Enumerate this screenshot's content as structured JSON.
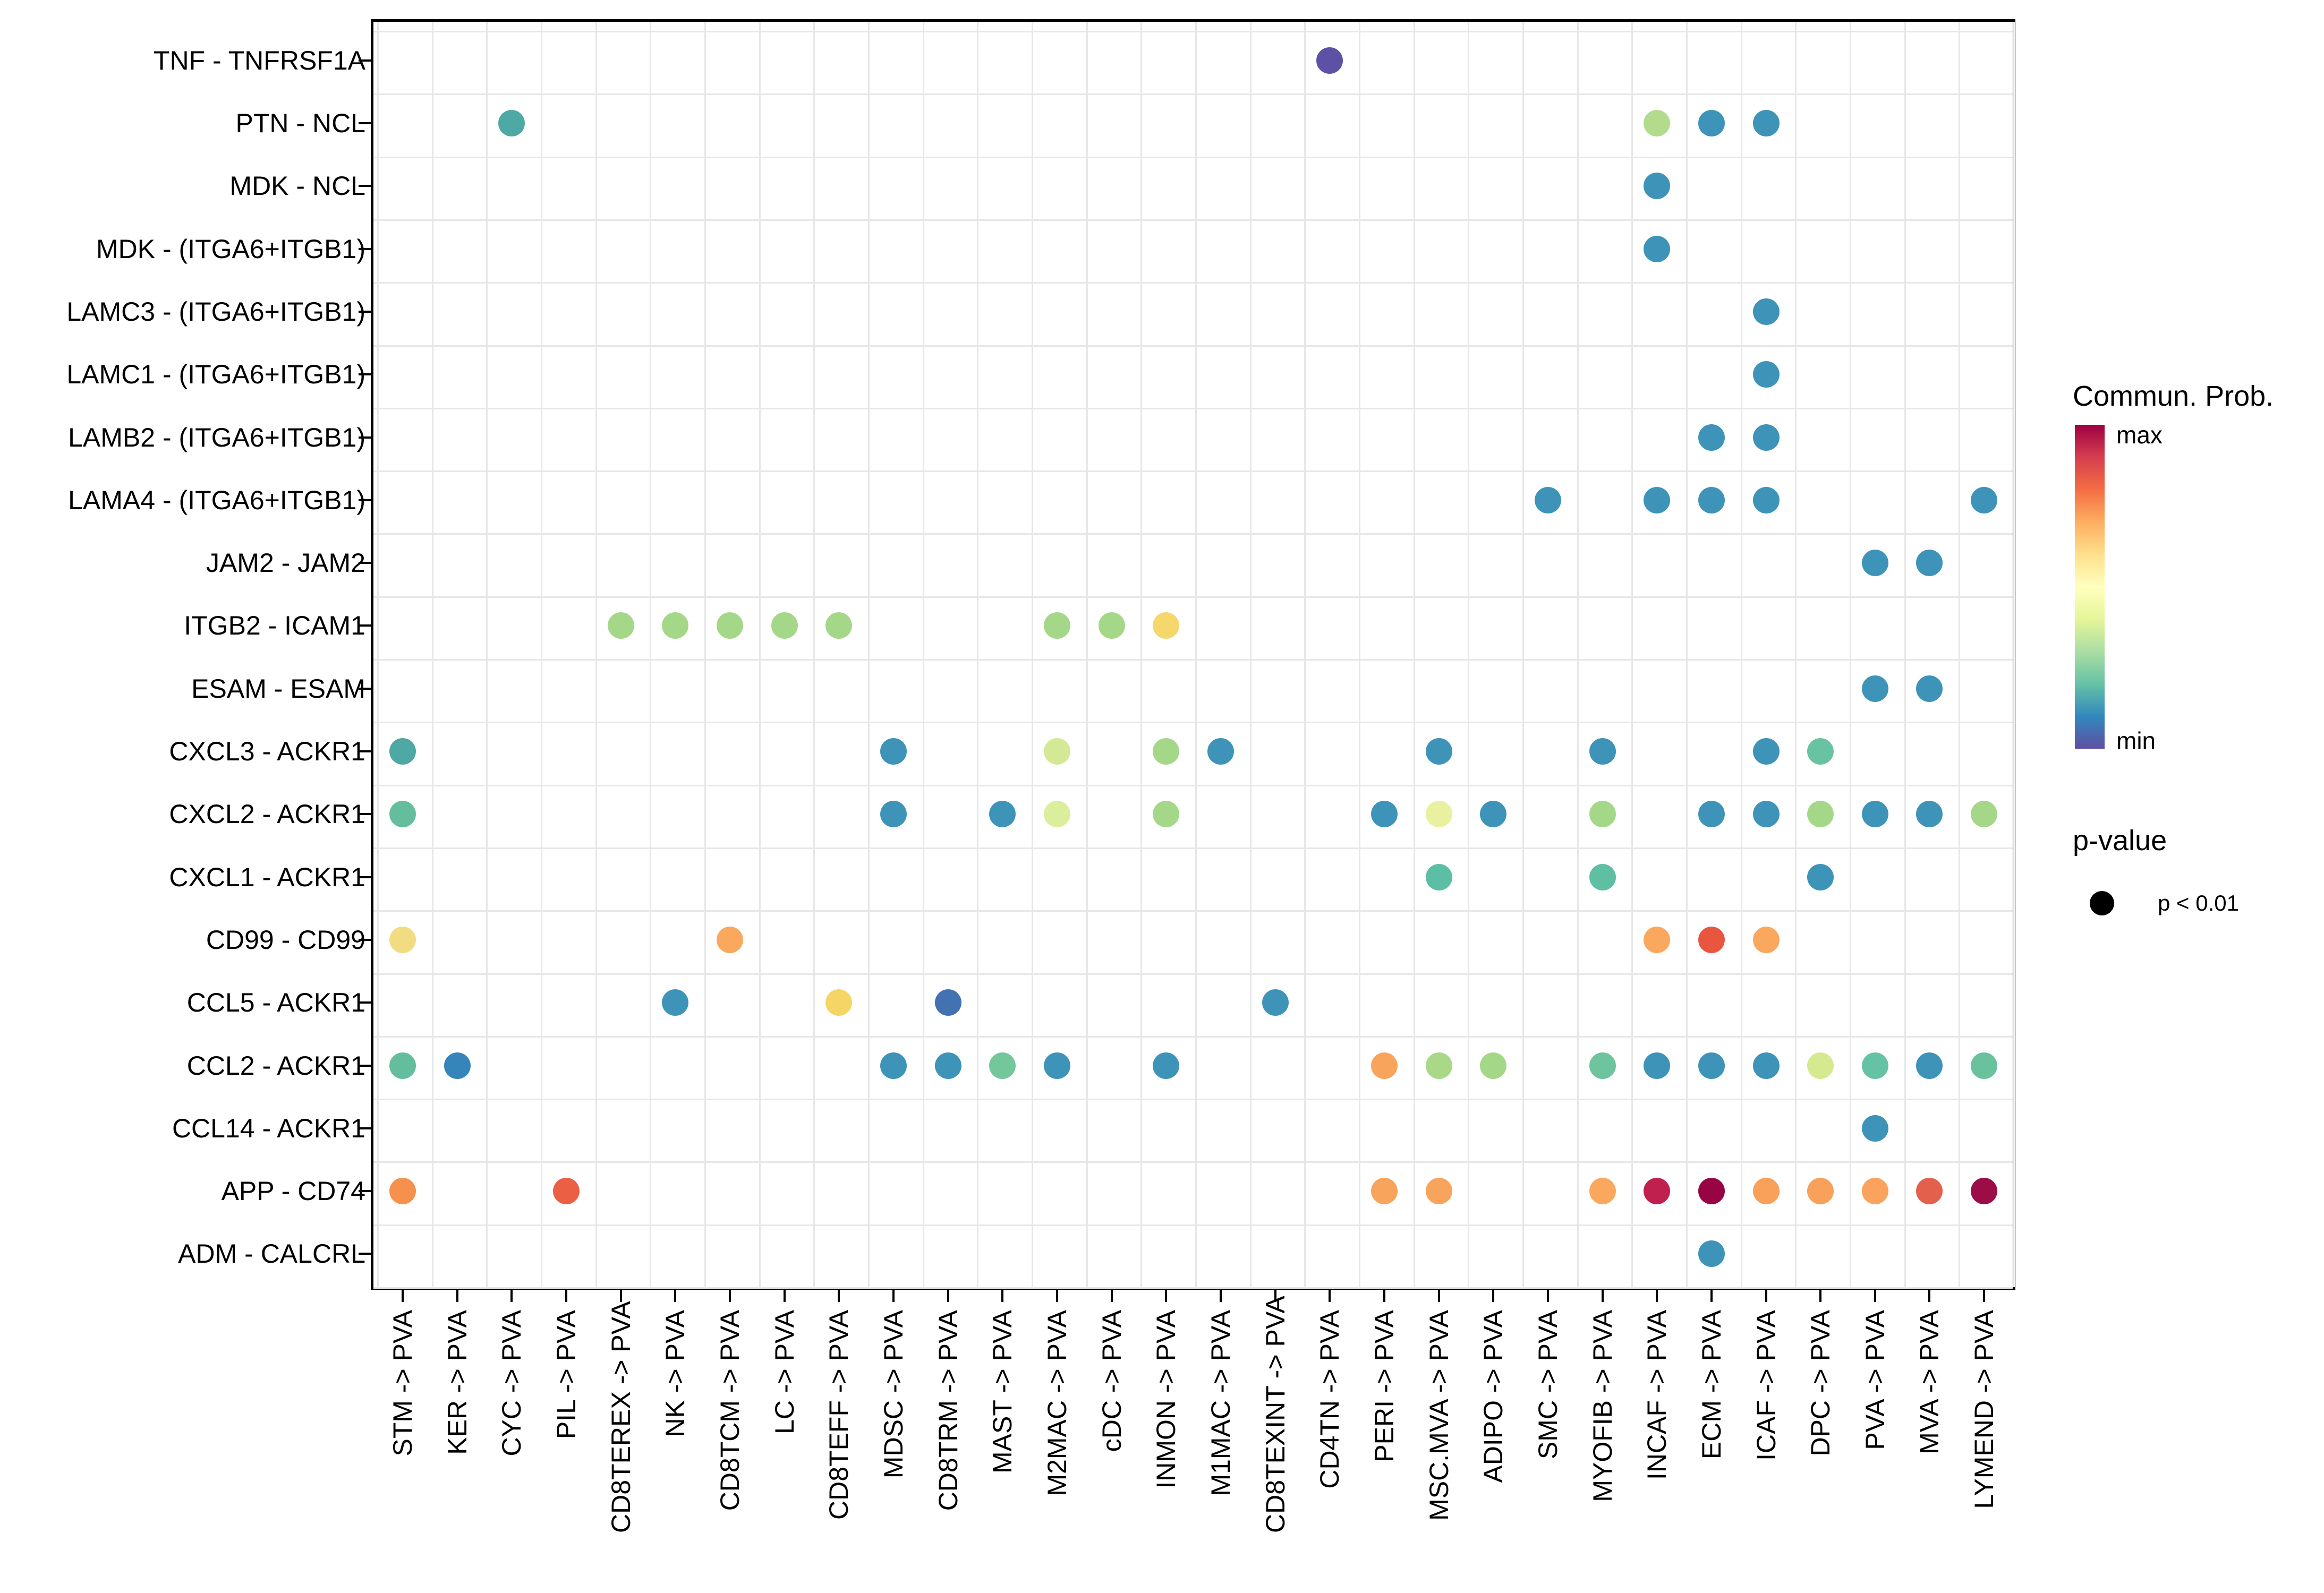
{
  "chart_data": {
    "type": "scatter",
    "subtype": "bubble-dotplot",
    "title": "",
    "x_axis_label": "",
    "y_axis_label": "",
    "grid": "on",
    "legend_position": "right",
    "x_categories": [
      "STM -> PVA",
      "KER -> PVA",
      "CYC -> PVA",
      "PIL -> PVA",
      "CD8TEREX -> PVA",
      "NK -> PVA",
      "CD8TCM -> PVA",
      "LC -> PVA",
      "CD8TEFF -> PVA",
      "MDSC -> PVA",
      "CD8TRM -> PVA",
      "MAST -> PVA",
      "M2MAC -> PVA",
      "cDC -> PVA",
      "INMON -> PVA",
      "M1MAC -> PVA",
      "CD8TEXINT -> PVA",
      "CD4TN -> PVA",
      "PERI -> PVA",
      "MSC.MVA -> PVA",
      "ADIPO -> PVA",
      "SMC -> PVA",
      "MYOFIB -> PVA",
      "INCAF -> PVA",
      "ECM -> PVA",
      "ICAF -> PVA",
      "DPC -> PVA",
      "PVA -> PVA",
      "MVA -> PVA",
      "LYMEND -> PVA"
    ],
    "y_categories": [
      "TNF - TNFRSF1A",
      "PTN - NCL",
      "MDK - NCL",
      "MDK - (ITGA6+ITGB1)",
      "LAMC3 - (ITGA6+ITGB1)",
      "LAMC1 - (ITGA6+ITGB1)",
      "LAMB2 - (ITGA6+ITGB1)",
      "LAMA4 - (ITGA6+ITGB1)",
      "JAM2 - JAM2",
      "ITGB2 - ICAM1",
      "ESAM - ESAM",
      "CXCL3 - ACKR1",
      "CXCL2 - ACKR1",
      "CXCL1 - ACKR1",
      "CD99 - CD99",
      "CCL5 - ACKR1",
      "CCL2 - ACKR1",
      "CCL14 - ACKR1",
      "APP - CD74",
      "ADM - CALCRL"
    ],
    "point_meaning": "color = communication probability (min..max), dot size uniform = p < 0.01",
    "points": [
      {
        "r": 0,
        "c": 17,
        "color": "#5D51A5"
      },
      {
        "r": 1,
        "c": 2,
        "color": "#4EA8A4"
      },
      {
        "r": 1,
        "c": 23,
        "color": "#B2DC8C"
      },
      {
        "r": 1,
        "c": 24,
        "color": "#3E93B8"
      },
      {
        "r": 1,
        "c": 25,
        "color": "#3E93B8"
      },
      {
        "r": 2,
        "c": 23,
        "color": "#3E93B8"
      },
      {
        "r": 3,
        "c": 23,
        "color": "#3E93B8"
      },
      {
        "r": 4,
        "c": 25,
        "color": "#3E93B8"
      },
      {
        "r": 5,
        "c": 25,
        "color": "#3E93B8"
      },
      {
        "r": 6,
        "c": 24,
        "color": "#3E93B8"
      },
      {
        "r": 6,
        "c": 25,
        "color": "#3E93B8"
      },
      {
        "r": 7,
        "c": 21,
        "color": "#3E93B8"
      },
      {
        "r": 7,
        "c": 23,
        "color": "#3E93B8"
      },
      {
        "r": 7,
        "c": 24,
        "color": "#3E93B8"
      },
      {
        "r": 7,
        "c": 25,
        "color": "#3E93B8"
      },
      {
        "r": 7,
        "c": 29,
        "color": "#3E93B8"
      },
      {
        "r": 8,
        "c": 27,
        "color": "#3E93B8"
      },
      {
        "r": 8,
        "c": 28,
        "color": "#3E93B8"
      },
      {
        "r": 9,
        "c": 4,
        "color": "#A5D789"
      },
      {
        "r": 9,
        "c": 5,
        "color": "#A5D789"
      },
      {
        "r": 9,
        "c": 6,
        "color": "#A5D789"
      },
      {
        "r": 9,
        "c": 7,
        "color": "#A5D789"
      },
      {
        "r": 9,
        "c": 8,
        "color": "#A5D789"
      },
      {
        "r": 9,
        "c": 12,
        "color": "#A5D789"
      },
      {
        "r": 9,
        "c": 13,
        "color": "#A5D789"
      },
      {
        "r": 9,
        "c": 14,
        "color": "#F5D76C"
      },
      {
        "r": 10,
        "c": 27,
        "color": "#3E93B8"
      },
      {
        "r": 10,
        "c": 28,
        "color": "#3E93B8"
      },
      {
        "r": 11,
        "c": 0,
        "color": "#4EA8A4"
      },
      {
        "r": 11,
        "c": 9,
        "color": "#3E93B8"
      },
      {
        "r": 11,
        "c": 12,
        "color": "#D3E995"
      },
      {
        "r": 11,
        "c": 14,
        "color": "#A5D789"
      },
      {
        "r": 11,
        "c": 15,
        "color": "#3E93B8"
      },
      {
        "r": 11,
        "c": 19,
        "color": "#3E93B8"
      },
      {
        "r": 11,
        "c": 22,
        "color": "#3E93B8"
      },
      {
        "r": 11,
        "c": 25,
        "color": "#3E93B8"
      },
      {
        "r": 11,
        "c": 26,
        "color": "#68C3A3"
      },
      {
        "r": 12,
        "c": 0,
        "color": "#64BE9E"
      },
      {
        "r": 12,
        "c": 9,
        "color": "#3E93B8"
      },
      {
        "r": 12,
        "c": 11,
        "color": "#3E93B8"
      },
      {
        "r": 12,
        "c": 12,
        "color": "#DBEE9B"
      },
      {
        "r": 12,
        "c": 14,
        "color": "#A5D789"
      },
      {
        "r": 12,
        "c": 18,
        "color": "#3E93B8"
      },
      {
        "r": 12,
        "c": 19,
        "color": "#E9F0A0"
      },
      {
        "r": 12,
        "c": 20,
        "color": "#3E93B8"
      },
      {
        "r": 12,
        "c": 22,
        "color": "#A5D789"
      },
      {
        "r": 12,
        "c": 24,
        "color": "#3E93B8"
      },
      {
        "r": 12,
        "c": 25,
        "color": "#3E93B8"
      },
      {
        "r": 12,
        "c": 26,
        "color": "#A5D789"
      },
      {
        "r": 12,
        "c": 27,
        "color": "#3E93B8"
      },
      {
        "r": 12,
        "c": 28,
        "color": "#3E93B8"
      },
      {
        "r": 12,
        "c": 29,
        "color": "#A5D789"
      },
      {
        "r": 13,
        "c": 19,
        "color": "#5CBEA5"
      },
      {
        "r": 13,
        "c": 22,
        "color": "#5FBFA2"
      },
      {
        "r": 13,
        "c": 26,
        "color": "#3E93B8"
      },
      {
        "r": 14,
        "c": 0,
        "color": "#F2DC81"
      },
      {
        "r": 14,
        "c": 6,
        "color": "#FAA85D"
      },
      {
        "r": 14,
        "c": 23,
        "color": "#FAA85D"
      },
      {
        "r": 14,
        "c": 24,
        "color": "#E8563F"
      },
      {
        "r": 14,
        "c": 25,
        "color": "#FAA85D"
      },
      {
        "r": 15,
        "c": 5,
        "color": "#3E93B8"
      },
      {
        "r": 15,
        "c": 8,
        "color": "#F6D567"
      },
      {
        "r": 15,
        "c": 10,
        "color": "#4272B2"
      },
      {
        "r": 15,
        "c": 16,
        "color": "#3E93B8"
      },
      {
        "r": 16,
        "c": 0,
        "color": "#64BE9E"
      },
      {
        "r": 16,
        "c": 1,
        "color": "#3585BB"
      },
      {
        "r": 16,
        "c": 9,
        "color": "#3E93B8"
      },
      {
        "r": 16,
        "c": 10,
        "color": "#3E93B8"
      },
      {
        "r": 16,
        "c": 11,
        "color": "#74C69B"
      },
      {
        "r": 16,
        "c": 12,
        "color": "#3E93B8"
      },
      {
        "r": 16,
        "c": 14,
        "color": "#3E93B8"
      },
      {
        "r": 16,
        "c": 18,
        "color": "#F9A45C"
      },
      {
        "r": 16,
        "c": 19,
        "color": "#A8D888"
      },
      {
        "r": 16,
        "c": 20,
        "color": "#A5D789"
      },
      {
        "r": 16,
        "c": 22,
        "color": "#6EC49C"
      },
      {
        "r": 16,
        "c": 23,
        "color": "#3E93B8"
      },
      {
        "r": 16,
        "c": 24,
        "color": "#3E93B8"
      },
      {
        "r": 16,
        "c": 25,
        "color": "#3E93B8"
      },
      {
        "r": 16,
        "c": 26,
        "color": "#D5E98F"
      },
      {
        "r": 16,
        "c": 27,
        "color": "#66C2A4"
      },
      {
        "r": 16,
        "c": 28,
        "color": "#3E93B8"
      },
      {
        "r": 16,
        "c": 29,
        "color": "#6AC19E"
      },
      {
        "r": 17,
        "c": 27,
        "color": "#3E93B8"
      },
      {
        "r": 18,
        "c": 0,
        "color": "#F5914D"
      },
      {
        "r": 18,
        "c": 3,
        "color": "#EB5F45"
      },
      {
        "r": 18,
        "c": 18,
        "color": "#F9A45C"
      },
      {
        "r": 18,
        "c": 19,
        "color": "#F9A45C"
      },
      {
        "r": 18,
        "c": 22,
        "color": "#FAA85D"
      },
      {
        "r": 18,
        "c": 23,
        "color": "#C0204E"
      },
      {
        "r": 18,
        "c": 24,
        "color": "#970343"
      },
      {
        "r": 18,
        "c": 25,
        "color": "#F9A05A"
      },
      {
        "r": 18,
        "c": 26,
        "color": "#F9A05A"
      },
      {
        "r": 18,
        "c": 27,
        "color": "#FBA35C"
      },
      {
        "r": 18,
        "c": 28,
        "color": "#E3604D"
      },
      {
        "r": 18,
        "c": 29,
        "color": "#9C0C46"
      },
      {
        "r": 19,
        "c": 24,
        "color": "#3E93B8"
      }
    ]
  },
  "legend": {
    "colorbar": {
      "title": "Commun. Prob.",
      "max_label": "max",
      "min_label": "min",
      "gradient_top_to_bottom": [
        "#9E0142",
        "#D53E4F",
        "#F46D43",
        "#FDAE61",
        "#FEE08B",
        "#FFFFBF",
        "#E6F598",
        "#ABDDA4",
        "#66C2A5",
        "#3288BD",
        "#5E4FA2"
      ]
    },
    "pvalue": {
      "title": "p-value",
      "dot_color": "#000000",
      "entry_label": "p < 0.01"
    }
  }
}
